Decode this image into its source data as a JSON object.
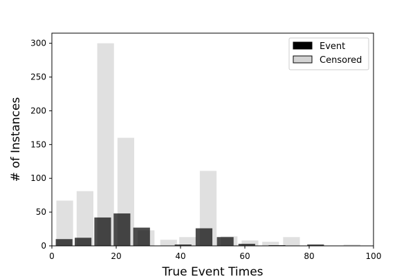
{
  "chart_data": {
    "type": "bar",
    "xlabel": "True Event Times",
    "ylabel": "# of Instances",
    "xlim": [
      0,
      100
    ],
    "ylim": [
      0,
      315
    ],
    "xticks": [
      0,
      20,
      40,
      60,
      80,
      100
    ],
    "yticks": [
      0,
      50,
      100,
      150,
      200,
      250,
      300
    ],
    "legend_position": "top-right",
    "grid": false,
    "series": [
      {
        "name": "Event",
        "color": "#000000",
        "alpha": 0.7,
        "bar_width": 5.2,
        "x": [
          3.8,
          9.7,
          15.8,
          21.8,
          27.9,
          40.8,
          47.3,
          53.9,
          60.6,
          70.0,
          82.0
        ],
        "values": [
          10,
          12,
          42,
          48,
          27,
          2,
          26,
          13,
          3,
          1,
          2
        ]
      },
      {
        "name": "Censored",
        "color": "#d3d3d3",
        "alpha": 0.7,
        "bar_width": 5.2,
        "x": [
          4,
          10.3,
          16.7,
          23,
          29.3,
          36.3,
          42.2,
          48.6,
          55.1,
          61.6,
          68,
          74.5,
          93.3
        ],
        "values": [
          67,
          81,
          300,
          160,
          23,
          9,
          13,
          111,
          14,
          8,
          6,
          13,
          2
        ]
      }
    ]
  }
}
